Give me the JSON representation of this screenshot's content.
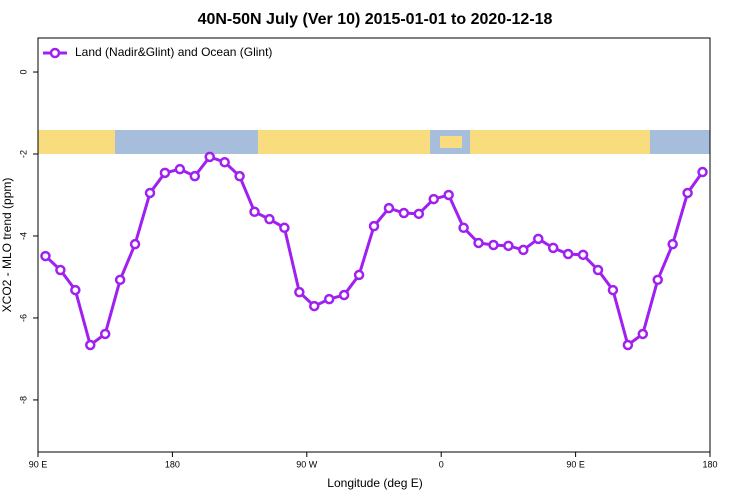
{
  "chart_data": {
    "type": "line",
    "title": "40N-50N July (Ver 10)   2015-01-01 to 2020-12-18",
    "x_label": "Longitude (deg E)",
    "y_label": "XCO2 - MLO trend (ppm)",
    "x": [
      95,
      105,
      115,
      125,
      135,
      145,
      155,
      165,
      175,
      185,
      195,
      205,
      215,
      225,
      235,
      245,
      255,
      265,
      275,
      285,
      295,
      305,
      315,
      325,
      335,
      345,
      355,
      365,
      375,
      385,
      395,
      405,
      415,
      425,
      435,
      445,
      455,
      465,
      475,
      485,
      495,
      505,
      515,
      525,
      535
    ],
    "series": [
      {
        "name": "Land (Nadir&Glint) and Ocean (Glint)",
        "color": "#a020f0",
        "values": [
          -4.49,
          -4.83,
          -5.32,
          -6.66,
          -6.39,
          -5.07,
          -4.2,
          -2.95,
          -2.46,
          -2.37,
          -2.54,
          -2.07,
          -2.2,
          -2.54,
          -3.41,
          -3.59,
          -3.8,
          -5.37,
          -5.71,
          -5.54,
          -5.44,
          -4.95,
          -3.76,
          -3.32,
          -3.44,
          -3.46,
          -3.1,
          -3.0,
          -3.8,
          -4.17,
          -4.22,
          -4.24,
          -4.34,
          -4.07,
          -4.29,
          -4.44,
          -4.46,
          -4.83,
          -5.32,
          -6.66,
          -6.39,
          -5.07,
          -4.2,
          -2.95,
          -2.44
        ]
      }
    ],
    "xlim": [
      90,
      540
    ],
    "xticks": [
      {
        "value": 90,
        "label": "90 E"
      },
      180,
      {
        "value": 270,
        "label": "90 W"
      },
      {
        "value": 360,
        "label": "0"
      },
      {
        "value": 450,
        "label": "90 E"
      },
      {
        "value": 540,
        "label": "180"
      }
    ],
    "ylim": [
      -9.27,
      0.83
    ],
    "yticks": [
      0,
      -2,
      -4,
      -6,
      -8
    ],
    "legend": "top-left"
  }
}
